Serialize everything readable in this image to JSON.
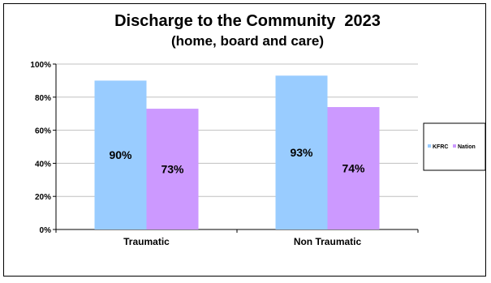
{
  "chart_data": {
    "type": "bar",
    "title": "Discharge to the Community  2023",
    "subtitle": "(home, board and care)",
    "categories": [
      "Traumatic",
      "Non Traumatic"
    ],
    "series": [
      {
        "name": "KFRC",
        "values": [
          90,
          93
        ],
        "labels": [
          "90%",
          "93%"
        ],
        "color": "#99CCFF"
      },
      {
        "name": "Nation",
        "values": [
          73,
          74
        ],
        "labels": [
          "73%",
          "74%"
        ],
        "color": "#CC99FF"
      }
    ],
    "ylim": [
      0,
      100
    ],
    "yticks": [
      0,
      20,
      40,
      60,
      80,
      100
    ],
    "ytick_labels": [
      "0%",
      "20%",
      "40%",
      "60%",
      "80%",
      "100%"
    ],
    "grid": true,
    "legend": "right"
  }
}
